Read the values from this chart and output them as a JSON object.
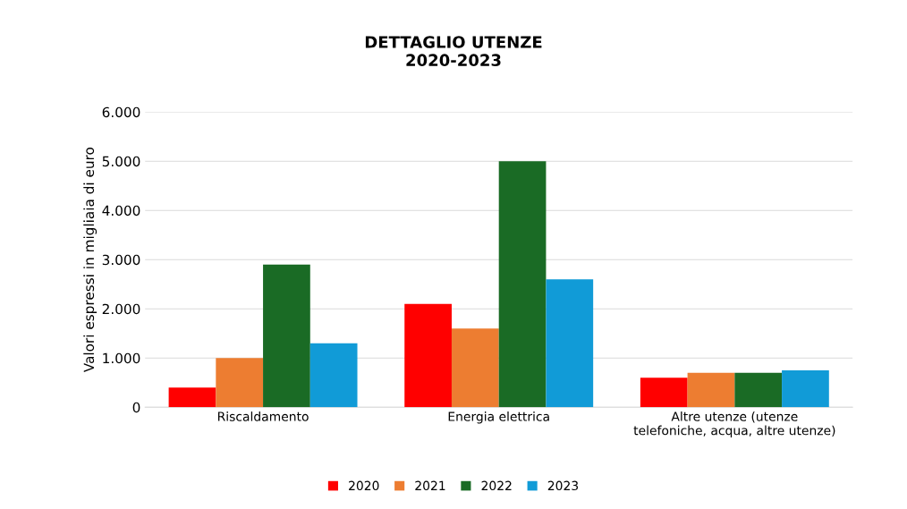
{
  "chart_data": {
    "type": "bar",
    "title": "DETTAGLIO UTENZE\n2020-2023",
    "ylabel": "Valori espressi in migliaia di euro",
    "categories": [
      "Riscaldamento",
      "Energia elettrica",
      "Altre utenze (utenze\ntelefoniche, acqua, altre utenze)"
    ],
    "series": [
      {
        "name": "2020",
        "color": "#ff0000",
        "values": [
          400,
          2100,
          600
        ]
      },
      {
        "name": "2021",
        "color": "#ed7d31",
        "values": [
          1000,
          1600,
          700
        ]
      },
      {
        "name": "2022",
        "color": "#1a6b25",
        "values": [
          2900,
          5000,
          700
        ]
      },
      {
        "name": "2023",
        "color": "#119bd7",
        "values": [
          1300,
          2600,
          750
        ]
      }
    ],
    "ylim": [
      0,
      6000
    ],
    "yticks": [
      {
        "value": 0,
        "label": "0"
      },
      {
        "value": 1000,
        "label": "1.000"
      },
      {
        "value": 2000,
        "label": "2.000"
      },
      {
        "value": 3000,
        "label": "3.000"
      },
      {
        "value": 4000,
        "label": "4.000"
      },
      {
        "value": 5000,
        "label": "5.000"
      },
      {
        "value": 6000,
        "label": "6.000"
      }
    ],
    "grid": "y",
    "legend": "bottom"
  }
}
